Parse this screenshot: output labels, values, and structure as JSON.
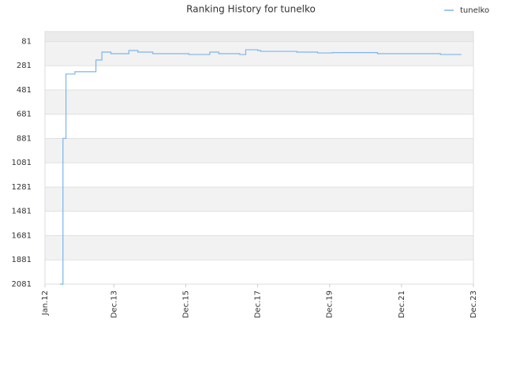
{
  "chart_data": {
    "type": "line",
    "title": "Ranking History for tunelko",
    "legend": "top-right",
    "grid": true,
    "step": true,
    "xlim": [
      "2012-01",
      "2023-12"
    ],
    "xticks": [
      {
        "value": "2012-01",
        "label": "Jan.12"
      },
      {
        "value": "2013-12",
        "label": "Dec.13"
      },
      {
        "value": "2015-12",
        "label": "Dec.15"
      },
      {
        "value": "2017-12",
        "label": "Dec.17"
      },
      {
        "value": "2019-12",
        "label": "Dec.19"
      },
      {
        "value": "2021-12",
        "label": "Dec.21"
      },
      {
        "value": "2023-12",
        "label": "Dec.23"
      }
    ],
    "ylim": [
      2081,
      0
    ],
    "yticks": [
      81,
      281,
      481,
      681,
      881,
      1081,
      1281,
      1481,
      1681,
      1881,
      2081
    ],
    "x": [
      "2012-06",
      "2012-07",
      "2012-08",
      "2012-11",
      "2013-06",
      "2013-08",
      "2013-11",
      "2014-05",
      "2014-08",
      "2015-01",
      "2016-01",
      "2016-08",
      "2016-11",
      "2017-06",
      "2017-08",
      "2017-12",
      "2018-01",
      "2019-01",
      "2019-08",
      "2020-01",
      "2021-04",
      "2023-01",
      "2023-08"
    ],
    "series": [
      {
        "name": "tunelko",
        "color": "#7cb5ec",
        "values": [
          2081,
          880,
          350,
          331,
          234,
          169,
          182,
          156,
          169,
          182,
          189,
          169,
          182,
          189,
          150,
          156,
          163,
          169,
          176,
          173,
          182,
          189,
          189
        ]
      }
    ]
  }
}
